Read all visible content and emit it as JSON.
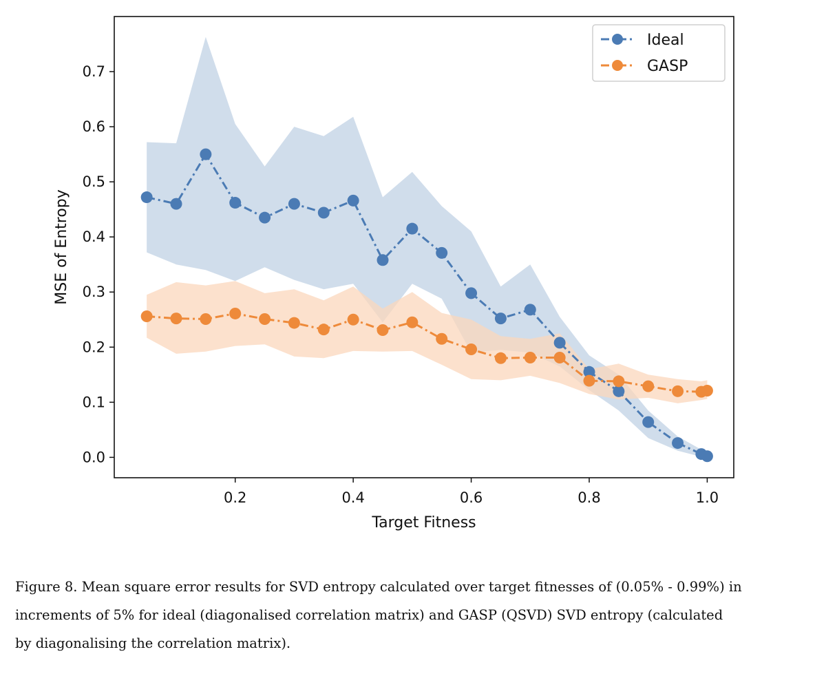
{
  "chart_data": {
    "type": "line",
    "xlabel": "Target Fitness",
    "ylabel": "MSE of Entropy",
    "xlim": [
      -0.005,
      1.045
    ],
    "ylim": [
      -0.037,
      0.8
    ],
    "xticks": [
      0.2,
      0.4,
      0.6,
      0.8,
      1.0
    ],
    "xtick_labels": [
      "0.2",
      "0.4",
      "0.6",
      "0.8",
      "1.0"
    ],
    "yticks": [
      0.0,
      0.1,
      0.2,
      0.3,
      0.4,
      0.5,
      0.6,
      0.7
    ],
    "ytick_labels": [
      "0.0",
      "0.1",
      "0.2",
      "0.3",
      "0.4",
      "0.5",
      "0.6",
      "0.7"
    ],
    "legend_position": "top-right",
    "x": [
      0.05,
      0.1,
      0.15,
      0.2,
      0.25,
      0.3,
      0.35,
      0.4,
      0.45,
      0.5,
      0.55,
      0.6,
      0.65,
      0.7,
      0.75,
      0.8,
      0.85,
      0.9,
      0.95,
      0.99,
      1.0
    ],
    "series": [
      {
        "name": "Ideal",
        "color": "#4b7bb4",
        "band_color": "#c8d7e8",
        "values": [
          0.472,
          0.46,
          0.55,
          0.462,
          0.435,
          0.46,
          0.444,
          0.466,
          0.358,
          0.415,
          0.371,
          0.298,
          0.252,
          0.268,
          0.208,
          0.155,
          0.12,
          0.064,
          0.026,
          0.006,
          0.002
        ],
        "upper": [
          0.572,
          0.57,
          0.763,
          0.605,
          0.528,
          0.6,
          0.583,
          0.618,
          0.472,
          0.518,
          0.456,
          0.41,
          0.31,
          0.35,
          0.255,
          0.185,
          0.15,
          0.085,
          0.038,
          0.014,
          0.006
        ],
        "lower": [
          0.372,
          0.35,
          0.34,
          0.32,
          0.345,
          0.322,
          0.305,
          0.315,
          0.245,
          0.315,
          0.288,
          0.19,
          0.195,
          0.19,
          0.165,
          0.122,
          0.085,
          0.035,
          0.012,
          0.001,
          0.0
        ]
      },
      {
        "name": "GASP",
        "color": "#ee8a3a",
        "band_color": "#fbd7bc",
        "values": [
          0.256,
          0.252,
          0.251,
          0.261,
          0.251,
          0.244,
          0.232,
          0.25,
          0.231,
          0.245,
          0.215,
          0.196,
          0.18,
          0.181,
          0.181,
          0.139,
          0.138,
          0.129,
          0.12,
          0.119,
          0.121
        ],
        "upper": [
          0.295,
          0.318,
          0.312,
          0.32,
          0.298,
          0.305,
          0.285,
          0.31,
          0.27,
          0.3,
          0.262,
          0.25,
          0.22,
          0.215,
          0.225,
          0.16,
          0.17,
          0.15,
          0.142,
          0.138,
          0.14
        ],
        "lower": [
          0.217,
          0.188,
          0.192,
          0.202,
          0.205,
          0.183,
          0.18,
          0.193,
          0.192,
          0.193,
          0.168,
          0.142,
          0.14,
          0.148,
          0.135,
          0.115,
          0.105,
          0.108,
          0.098,
          0.104,
          0.106
        ]
      }
    ]
  },
  "caption": {
    "lines": [
      "Figure 8. Mean square error results for SVD entropy calculated over target fitnesses of (0.05% - 0.99%) in",
      "increments of 5% for ideal (diagonalised correlation matrix) and GASP (QSVD) SVD entropy (calculated",
      "by diagonalising the correlation matrix)."
    ]
  }
}
